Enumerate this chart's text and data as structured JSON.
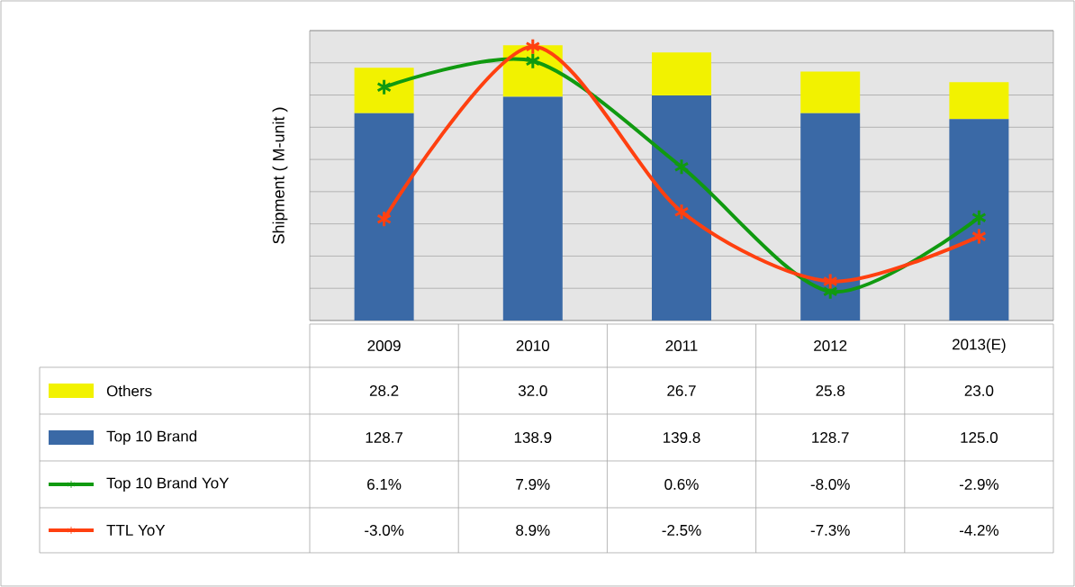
{
  "chart_data": {
    "type": "bar",
    "stacked": true,
    "ylabel": "Shipment ( M-unit )",
    "categories": [
      "2009",
      "2010",
      "2011",
      "2012",
      "2013(E)"
    ],
    "ylim": [
      0,
      180
    ],
    "yticks": [
      {
        "value": 0,
        "label": null
      },
      {
        "value": 20,
        "label": null
      },
      {
        "value": 40,
        "label": null
      },
      {
        "value": 60,
        "label": null
      },
      {
        "value": 80,
        "label": null
      },
      {
        "value": 100,
        "label": null
      },
      {
        "value": 120,
        "label": null
      },
      {
        "value": 140,
        "label": null
      },
      {
        "value": 160,
        "label": null
      },
      {
        "value": 180,
        "label": null
      }
    ],
    "y2lim": [
      -10,
      10
    ],
    "grid": "y",
    "legend": "bottom left",
    "marker": "cross",
    "line_style": "solid",
    "series": [
      {
        "name": "Top 10 Brand",
        "color": "#3a69a6",
        "values": [
          128.7,
          138.9,
          139.8,
          128.7,
          125.0
        ],
        "value_labels": [
          "128.7",
          "138.9",
          "139.8",
          "128.7",
          "125.0"
        ]
      },
      {
        "name": "Others",
        "color": "#f2f200",
        "values": [
          28.2,
          32.0,
          26.7,
          25.8,
          23.0
        ],
        "value_labels": [
          "28.2",
          "32.0",
          "26.7",
          "25.8",
          "23.0"
        ]
      },
      {
        "name": "Top 10 Brand YoY",
        "type": "line",
        "axis": "y2",
        "color": "#109a10",
        "values": [
          6.1,
          7.9,
          0.6,
          -8.0,
          -2.9
        ],
        "value_labels": [
          "6.1%",
          "7.9%",
          "0.6%",
          "-8.0%",
          "-2.9%"
        ]
      },
      {
        "name": "TTL YoY",
        "type": "line",
        "axis": "y2",
        "color": "#ff4010",
        "values": [
          -3.0,
          8.9,
          -2.5,
          -7.3,
          -4.2
        ],
        "value_labels": [
          "-3.0%",
          "8.9%",
          "-2.5%",
          "-7.3%",
          "-4.2%"
        ]
      }
    ]
  }
}
